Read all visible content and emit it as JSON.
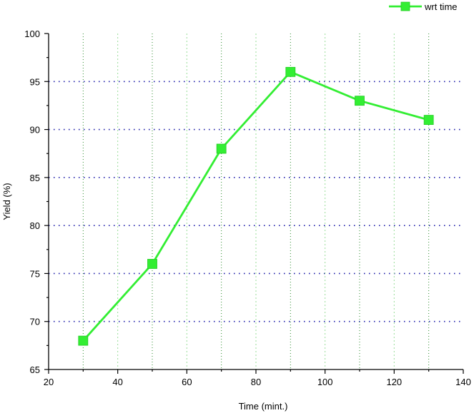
{
  "chart_data": {
    "type": "line",
    "title": "",
    "xlabel": "Time (mint.)",
    "ylabel": "Yield (%)",
    "xlim": [
      20,
      140
    ],
    "ylim": [
      65,
      100
    ],
    "xticks": [
      20,
      40,
      60,
      80,
      100,
      120,
      140
    ],
    "yticks": [
      65,
      70,
      75,
      80,
      85,
      90,
      95,
      100
    ],
    "grid": true,
    "legend_position": "top-right",
    "series": [
      {
        "name": "wrt time",
        "color": "#33ee33",
        "marker": "square",
        "x": [
          30,
          50,
          70,
          90,
          110,
          130
        ],
        "y": [
          68,
          76,
          88,
          96,
          93,
          91
        ]
      }
    ],
    "colors": {
      "series": "#33ee33",
      "marker_edge": "#22cc22",
      "horizontal_grid": "#1a1aa8",
      "vertical_grid_minor": "#2a8a2a",
      "vertical_grid_major": "#99dd99",
      "axis": "#000000"
    }
  }
}
